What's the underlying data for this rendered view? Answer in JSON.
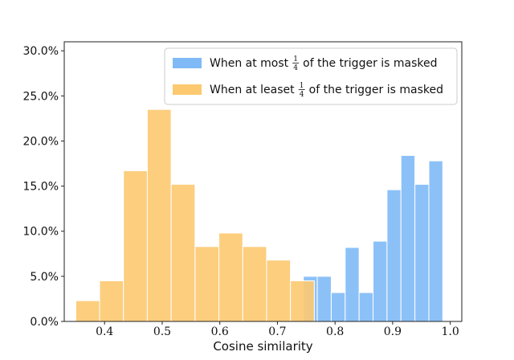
{
  "chart_data": {
    "type": "histogram",
    "title": "",
    "xlabel": "Cosine similarity",
    "ylabel": "",
    "xlim": [
      0.33,
      1.02
    ],
    "ylim": [
      0,
      31
    ],
    "x_ticks": [
      0.4,
      0.5,
      0.6,
      0.7,
      0.8,
      0.9,
      1.0
    ],
    "x_tick_labels": [
      "0.4",
      "0.5",
      "0.6",
      "0.7",
      "0.8",
      "0.9",
      "1.0"
    ],
    "y_ticks": [
      0,
      5,
      10,
      15,
      20,
      25,
      30
    ],
    "y_tick_labels": [
      "0.0%",
      "5.0%",
      "10.0%",
      "15.0%",
      "20.0%",
      "25.0%",
      "30.0%"
    ],
    "y_unit": "percent",
    "grid": false,
    "legend_position": "top-right",
    "series": [
      {
        "name_prefix": "When at most",
        "name_fraction_numerator": "1",
        "name_fraction_denominator": "4",
        "name_suffix": "of the trigger is masked",
        "color": "#7fbaf6",
        "bin_edges": [
          0.745,
          0.7692,
          0.7934,
          0.8176,
          0.8418,
          0.866,
          0.8902,
          0.9144,
          0.9386,
          0.9628,
          0.987
        ],
        "values": [
          5.0,
          5.0,
          3.2,
          8.2,
          3.2,
          8.9,
          14.6,
          18.4,
          15.2,
          17.8
        ]
      },
      {
        "name_prefix": "When at leaset",
        "name_fraction_numerator": "1",
        "name_fraction_denominator": "4",
        "name_suffix": "of the trigger is masked",
        "color": "#fcc970",
        "bin_edges": [
          0.35,
          0.3914,
          0.4328,
          0.4742,
          0.5156,
          0.557,
          0.5984,
          0.6398,
          0.6812,
          0.7226,
          0.764
        ],
        "values": [
          2.3,
          4.5,
          16.7,
          23.5,
          15.2,
          8.3,
          9.8,
          8.3,
          6.8,
          4.5
        ]
      }
    ]
  }
}
